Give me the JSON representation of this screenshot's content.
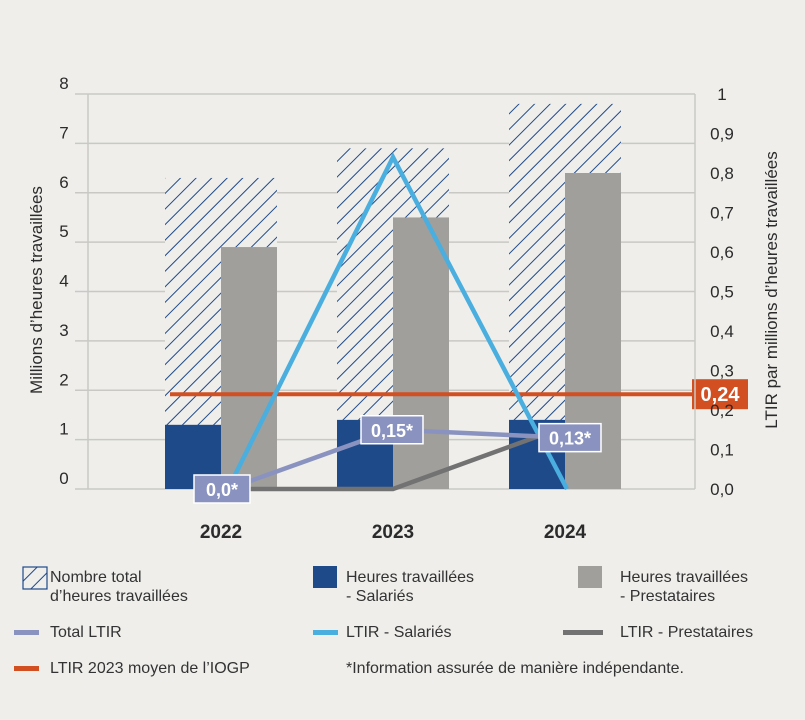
{
  "chart_data": {
    "type": "bar",
    "categories": [
      "2022",
      "2023",
      "2024"
    ],
    "ylabel": "Millions d’heures travaillées",
    "y2label": "LTIR par millions d’heures travaillées",
    "ylim": [
      0,
      8
    ],
    "y2lim": [
      0,
      1
    ],
    "yticks": [
      "0",
      "1",
      "2",
      "3",
      "4",
      "5",
      "6",
      "7",
      "8"
    ],
    "y2ticks": [
      "0,0",
      "0,1",
      "0,2",
      "0,3",
      "0,4",
      "0,5",
      "0,6",
      "0,7",
      "0,8",
      "0,9",
      "1"
    ],
    "grid": true,
    "bar_series": [
      {
        "name": "Nombre total d’heures travaillées",
        "values": [
          6.3,
          6.9,
          7.8
        ],
        "pattern": "hatched",
        "color": "#1f4a8a"
      },
      {
        "name": "Heures travaillées - Salariés",
        "values": [
          1.3,
          1.4,
          1.4
        ],
        "color": "#1f4a8a"
      },
      {
        "name": "Heures travaillées - Prestataires",
        "values": [
          4.9,
          5.5,
          6.4
        ],
        "color": "#a09f9c"
      }
    ],
    "line_series": [
      {
        "name": "Total LTIR",
        "values": [
          0.0,
          0.15,
          0.13
        ],
        "labels": [
          "0,0*",
          "0,15*",
          "0,13*"
        ],
        "color": "#8a93c0",
        "axis": "right"
      },
      {
        "name": "LTIR - Salariés",
        "values": [
          0.0,
          0.84,
          0.0
        ],
        "color": "#4aaede",
        "axis": "right"
      },
      {
        "name": "LTIR - Prestataires",
        "values": [
          0.0,
          0.0,
          0.16
        ],
        "color": "#727272",
        "axis": "right"
      }
    ],
    "reference_line": {
      "name": "LTIR 2023 moyen de l’IOGP",
      "value": 0.24,
      "label": "0,24",
      "color": "#d24f22",
      "axis": "right"
    },
    "legend_placement": "bottom"
  },
  "legend": {
    "items": [
      {
        "label1": "Nombre total",
        "label2": "d’heures travaillées"
      },
      {
        "label1": "Heures travaillées",
        "label2": "- Salariés"
      },
      {
        "label1": "Heures travaillées",
        "label2": "- Prestataires"
      },
      {
        "label1": "Total LTIR"
      },
      {
        "label1": "LTIR - Salariés"
      },
      {
        "label1": "LTIR - Prestataires"
      },
      {
        "label1": "LTIR 2023 moyen de l’IOGP"
      }
    ],
    "footnote": "*Information assurée de manière indépendante."
  }
}
